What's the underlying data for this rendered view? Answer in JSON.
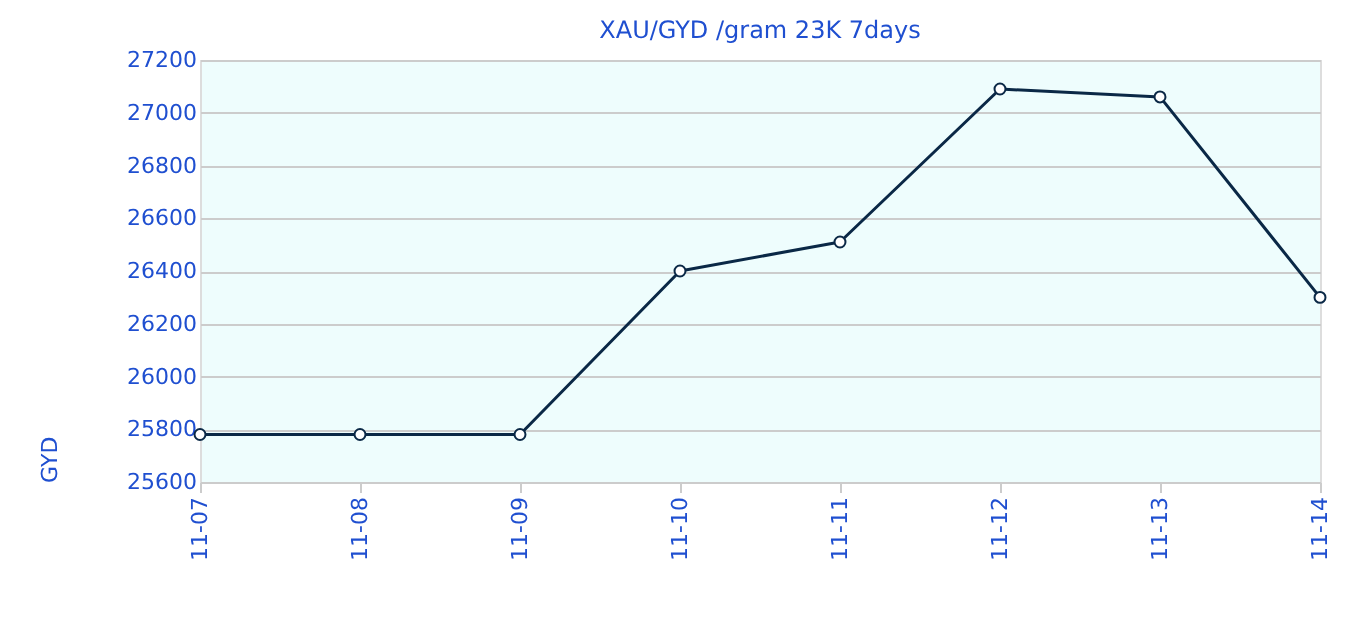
{
  "chart_data": {
    "type": "line",
    "title": "XAU/GYD /gram 23K 7days",
    "ylabel": "GYD",
    "categories": [
      "11-07",
      "11-08",
      "11-09",
      "11-10",
      "11-11",
      "11-12",
      "11-13",
      "11-14"
    ],
    "series": [
      {
        "color": "#0a2846",
        "values": [
          25780,
          25780,
          25780,
          26400,
          26510,
          27090,
          27060,
          26300
        ]
      }
    ],
    "ylim": [
      25600,
      27200
    ],
    "yticks": [
      25600,
      25800,
      26000,
      26200,
      26400,
      26600,
      26800,
      27000,
      27200
    ],
    "grid": "y",
    "marker": "circle",
    "line_style": "solid",
    "legend": false
  }
}
